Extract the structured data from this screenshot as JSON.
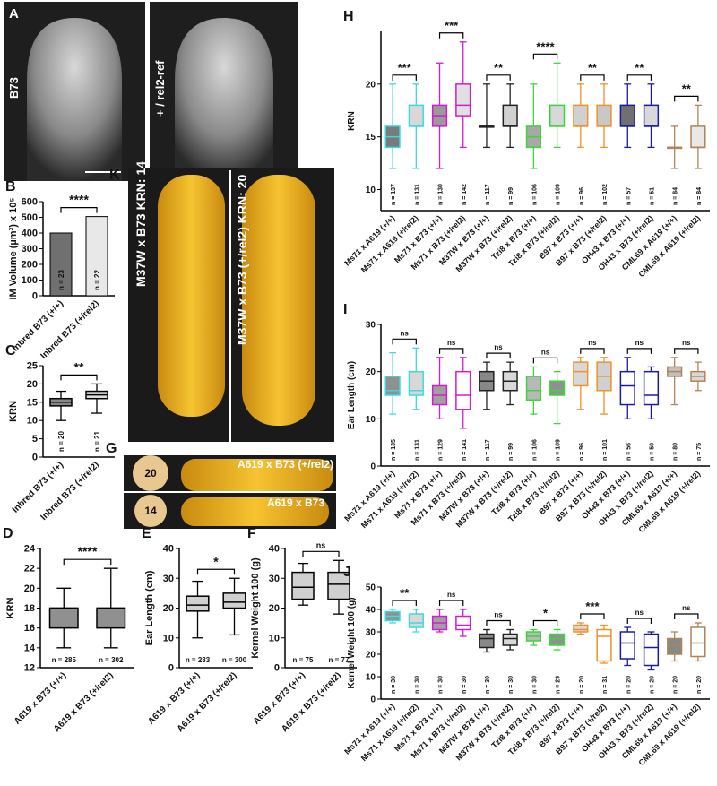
{
  "figure_labels": {
    "A": {
      "panel": "A",
      "labels": [
        "B73",
        "+ / rel2-ref"
      ]
    },
    "K": {
      "panel": "K",
      "labels": [
        "M37W x B73 KRN: 14",
        "M37W x B73 (+/rel2) KRN: 20"
      ]
    },
    "G": {
      "panel": "G",
      "labels": [
        "20",
        "A619 x B73 (+/rel2)",
        "14",
        "A619 x B73"
      ]
    }
  },
  "chart_data": [
    {
      "panel": "B",
      "type": "bar",
      "y_label": "IM Volume (µm³) x 10⁵",
      "categories": [
        "Inbred B73 (+/+)",
        "Inbred B73 (+/rel2)"
      ],
      "values": [
        400,
        505
      ],
      "fills": [
        "#707070",
        "#e8e8e8"
      ],
      "colors": [
        "#000000",
        "#000000"
      ],
      "ylim": [
        0,
        600
      ],
      "yticks": [
        0,
        100,
        200,
        300,
        400,
        500,
        600
      ],
      "n_labels": [
        "n = 23",
        "n = 22"
      ],
      "significance": [
        "****"
      ]
    },
    {
      "panel": "C",
      "type": "box",
      "y_label": "KRN",
      "categories": [
        "Inbred B73 (+/+)",
        "Inbred B73 (+/rel2)"
      ],
      "min": [
        10,
        12
      ],
      "q1": [
        14,
        16
      ],
      "median": [
        15,
        17
      ],
      "q3": [
        16,
        18
      ],
      "max": [
        18,
        20
      ],
      "fills": [
        "#888888",
        "#e0e0e0"
      ],
      "colors": [
        "#000000",
        "#000000"
      ],
      "ylim": [
        0,
        25
      ],
      "yticks": [
        0,
        5,
        10,
        15,
        20,
        25
      ],
      "n_labels": [
        "n = 20",
        "n = 21"
      ],
      "significance": [
        "**"
      ]
    },
    {
      "panel": "D",
      "type": "box",
      "y_label": "KRN",
      "categories": [
        "A619 x B73 (+/+)",
        "A619 x B73 (+/rel2)"
      ],
      "min": [
        14,
        14
      ],
      "q1": [
        16,
        16
      ],
      "median": [
        18,
        18
      ],
      "q3": [
        18,
        18
      ],
      "max": [
        20,
        22
      ],
      "fills": [
        "#909090",
        "#909090"
      ],
      "colors": [
        "#000000",
        "#000000"
      ],
      "ylim": [
        12,
        24
      ],
      "yticks": [
        12,
        14,
        16,
        18,
        20,
        22,
        24
      ],
      "n_labels": [
        "n = 285",
        "n = 302"
      ],
      "significance": [
        "****"
      ]
    },
    {
      "panel": "E",
      "type": "box",
      "y_label": "Ear Length (cm)",
      "categories": [
        "A619 x B73 (+/+)",
        "A619 x B73 (+/rel2)"
      ],
      "min": [
        10,
        11
      ],
      "q1": [
        19,
        20
      ],
      "median": [
        21,
        22
      ],
      "q3": [
        24,
        25
      ],
      "max": [
        29,
        30
      ],
      "fills": [
        "#d0d0d0",
        "#d0d0d0"
      ],
      "colors": [
        "#000000",
        "#000000"
      ],
      "ylim": [
        0,
        40
      ],
      "yticks": [
        0,
        10,
        20,
        30,
        40
      ],
      "n_labels": [
        "n = 283",
        "n = 300"
      ],
      "significance": [
        "*"
      ]
    },
    {
      "panel": "F",
      "type": "box",
      "y_label": "Kernel Weight 100 (g)",
      "categories": [
        "A619 x B73 (+/+)",
        "A619 x B73 (+/rel2)"
      ],
      "min": [
        21,
        18
      ],
      "q1": [
        23,
        23
      ],
      "median": [
        27,
        28
      ],
      "q3": [
        32,
        32
      ],
      "max": [
        35,
        36
      ],
      "fills": [
        "#d0d0d0",
        "#d0d0d0"
      ],
      "colors": [
        "#000000",
        "#000000"
      ],
      "ylim": [
        0,
        40
      ],
      "yticks": [
        0,
        10,
        20,
        30,
        40
      ],
      "n_labels": [
        "n = 75",
        "n = 77"
      ],
      "significance": [
        "ns"
      ]
    },
    {
      "panel": "H",
      "type": "box",
      "y_label": "KRN",
      "categories": [
        "Ms71 x A619 (+/+)",
        "Ms71 x A619 (+/rel2)",
        "Ms71 x B73 (+/+)",
        "Ms71 x B73 (+/rel2)",
        "M37W x B73 (+/+)",
        "M37W x B73 (+/rel2)",
        "Tzi8 x B73 (+/+)",
        "Tzi8 x B73 (+/rel2)",
        "B97 x B73 (+/+)",
        "B97 x B73 (+/rel2)",
        "OH43 x B73 (+/+)",
        "OH43 x B73 (+/rel2)",
        "CML69 x A619 (+/+)",
        "CML69 x A619 (+/rel2)"
      ],
      "min": [
        12,
        12,
        12,
        14,
        14,
        14,
        12,
        14,
        14,
        14,
        14,
        14,
        12,
        12
      ],
      "q1": [
        14,
        16,
        16,
        17,
        16,
        16,
        14,
        16,
        16,
        16,
        16,
        16,
        14,
        14
      ],
      "median": [
        15,
        16,
        17,
        18,
        16,
        16,
        15,
        16,
        16,
        16,
        16,
        16,
        14,
        14
      ],
      "q3": [
        16,
        18,
        18,
        20,
        16,
        18,
        16,
        18,
        18,
        18,
        18,
        18,
        14,
        16
      ],
      "max": [
        20,
        20,
        22,
        24,
        20,
        20,
        20,
        22,
        20,
        20,
        20,
        20,
        16,
        18
      ],
      "fills": [
        "#7a7a7a",
        "#d8d8d8",
        "#9a9a9a",
        "#e0e0e0",
        "#ffffff",
        "#d0d0d0",
        "#a8a8a8",
        "#d8d8d8",
        "#d0d0d0",
        "#c8c8c8",
        "#707070",
        "#d8d8d8",
        "#ffffff",
        "#e8e8e8"
      ],
      "colors": [
        "#3fd8e0",
        "#3fd8e0",
        "#d21cd2",
        "#d21cd2",
        "#222222",
        "#222222",
        "#3ed43e",
        "#3ed43e",
        "#f0902a",
        "#f0902a",
        "#1a1aa8",
        "#1a1aa8",
        "#b08458",
        "#b08458"
      ],
      "ylim": [
        8,
        25
      ],
      "yticks": [
        10,
        15,
        20
      ],
      "n_labels": [
        "n = 137",
        "n = 131",
        "n = 130",
        "n = 142",
        "n = 117",
        "n = 99",
        "n = 106",
        "n = 109",
        "n = 96",
        "n = 102",
        "n = 57",
        "n = 51",
        "n = 84",
        "n = 84"
      ],
      "significance": [
        "***",
        "***",
        "**",
        "****",
        "**",
        "**",
        "**"
      ]
    },
    {
      "panel": "I",
      "type": "box",
      "y_label": "Ear Length (cm)",
      "categories": [
        "Ms71 x A619 (+/+)",
        "Ms71 x A619 (+/rel2)",
        "Ms71 x B73 (+/+)",
        "Ms71 x B73 (+/rel2)",
        "M37W x B73 (+/+)",
        "M37W x B73 (+/rel2)",
        "Tzi8 x B73 (+/+)",
        "Tzi8 x B73 (+/rel2)",
        "B97 x B73 (+/+)",
        "B97 x B73 (+/rel2)",
        "OH43 x B73 (+/+)",
        "OH43 x B73 (+/rel2)",
        "CML69 x A619 (+/+)",
        "CML69 x A619 (+/rel2)"
      ],
      "min": [
        11,
        12,
        10,
        8,
        12,
        13,
        11,
        9,
        12,
        11,
        10,
        10,
        13,
        16
      ],
      "q1": [
        15,
        15,
        13,
        12,
        16,
        16,
        14,
        15,
        17,
        16,
        13,
        13,
        19,
        18
      ],
      "median": [
        16,
        16,
        15,
        15,
        18,
        18,
        16,
        16,
        20,
        19,
        17,
        15,
        20,
        19
      ],
      "q3": [
        19,
        20,
        17,
        20,
        20,
        20,
        19,
        18,
        22,
        22,
        20,
        20,
        21,
        20
      ],
      "max": [
        24,
        25,
        23,
        23,
        22,
        22,
        21,
        20,
        23,
        23,
        23,
        21,
        23,
        22
      ],
      "fills": [
        "#909090",
        "#d8d8d8",
        "#a0a0a0",
        "#ffffff",
        "#888888",
        "#d8d8d8",
        "#b8b8b8",
        "#909090",
        "#d8d8d8",
        "#d0d0d0",
        "#ffffff",
        "#ffffff",
        "#c0c0c0",
        "#d8d8d8"
      ],
      "colors": [
        "#3fd8e0",
        "#3fd8e0",
        "#d21cd2",
        "#d21cd2",
        "#222222",
        "#222222",
        "#3ed43e",
        "#3ed43e",
        "#f0902a",
        "#f0902a",
        "#1a1aa8",
        "#1a1aa8",
        "#b08458",
        "#b08458"
      ],
      "ylim": [
        0,
        30
      ],
      "yticks": [
        0,
        10,
        20,
        30
      ],
      "n_labels": [
        "n = 135",
        "n = 131",
        "n = 129",
        "n = 141",
        "n = 117",
        "n = 99",
        "n = 106",
        "n = 109",
        "n = 96",
        "n = 101",
        "n = 56",
        "n = 50",
        "n = 80",
        "n = 75"
      ],
      "significance": [
        "ns",
        "ns",
        "ns",
        "ns",
        "ns",
        "ns",
        "ns"
      ]
    },
    {
      "panel": "J",
      "type": "box",
      "y_label": "Kernel Weight 100 (g)",
      "categories": [
        "Ms71 x A619 (+/+)",
        "Ms71 x A619 (+/rel2)",
        "Ms71 x B73 (+/+)",
        "Ms71 x B73 (+/rel2)",
        "M37W x B73 (+/+)",
        "M37W x B73 (+/rel2)",
        "Tzi8 x B73 (+/+)",
        "Tzi8 x B73 (+/rel2)",
        "B97 x B73 (+/+)",
        "B97 x B73 (+/rel2)",
        "OH43 x B73 (+/+)",
        "OH43 x B73 (+/rel2)",
        "CML69 x A619 (+/+)",
        "CML69 x A619 (+/rel2)"
      ],
      "min": [
        34,
        30,
        30,
        28,
        21,
        22,
        24,
        22,
        29,
        16,
        15,
        13,
        17,
        17
      ],
      "q1": [
        35,
        32,
        31,
        31,
        23,
        24,
        26,
        24,
        30,
        17,
        18,
        15,
        20,
        19
      ],
      "median": [
        37,
        34,
        34,
        33,
        27,
        27,
        28,
        27,
        31,
        28,
        25,
        23,
        24,
        25
      ],
      "q3": [
        39,
        38,
        37,
        37,
        29,
        29,
        30,
        29,
        33,
        31,
        30,
        29,
        27,
        32
      ],
      "max": [
        40,
        40,
        40,
        40,
        31,
        31,
        31,
        31,
        34,
        33,
        32,
        30,
        30,
        34
      ],
      "fills": [
        "#909090",
        "#d8d8d8",
        "#a0a0a0",
        "#ffffff",
        "#888888",
        "#d8d8d8",
        "#b8b8b8",
        "#909090",
        "#d8d8d8",
        "#ffffff",
        "#ffffff",
        "#ffffff",
        "#888888",
        "#ffffff"
      ],
      "colors": [
        "#3fd8e0",
        "#3fd8e0",
        "#d21cd2",
        "#d21cd2",
        "#222222",
        "#222222",
        "#3ed43e",
        "#3ed43e",
        "#f0902a",
        "#f0902a",
        "#1a1aa8",
        "#1a1aa8",
        "#b08458",
        "#b08458"
      ],
      "ylim": [
        0,
        50
      ],
      "yticks": [
        0,
        10,
        20,
        30,
        40,
        50
      ],
      "n_labels": [
        "n = 30",
        "n = 30",
        "n = 30",
        "n = 30",
        "n = 30",
        "n = 30",
        "n = 30",
        "n = 29",
        "n = 20",
        "n = 31",
        "n = 20",
        "n = 20",
        "n = 20",
        "n = 20"
      ],
      "significance": [
        "**",
        "ns",
        "ns",
        "*",
        "***",
        "ns",
        "ns"
      ]
    }
  ]
}
